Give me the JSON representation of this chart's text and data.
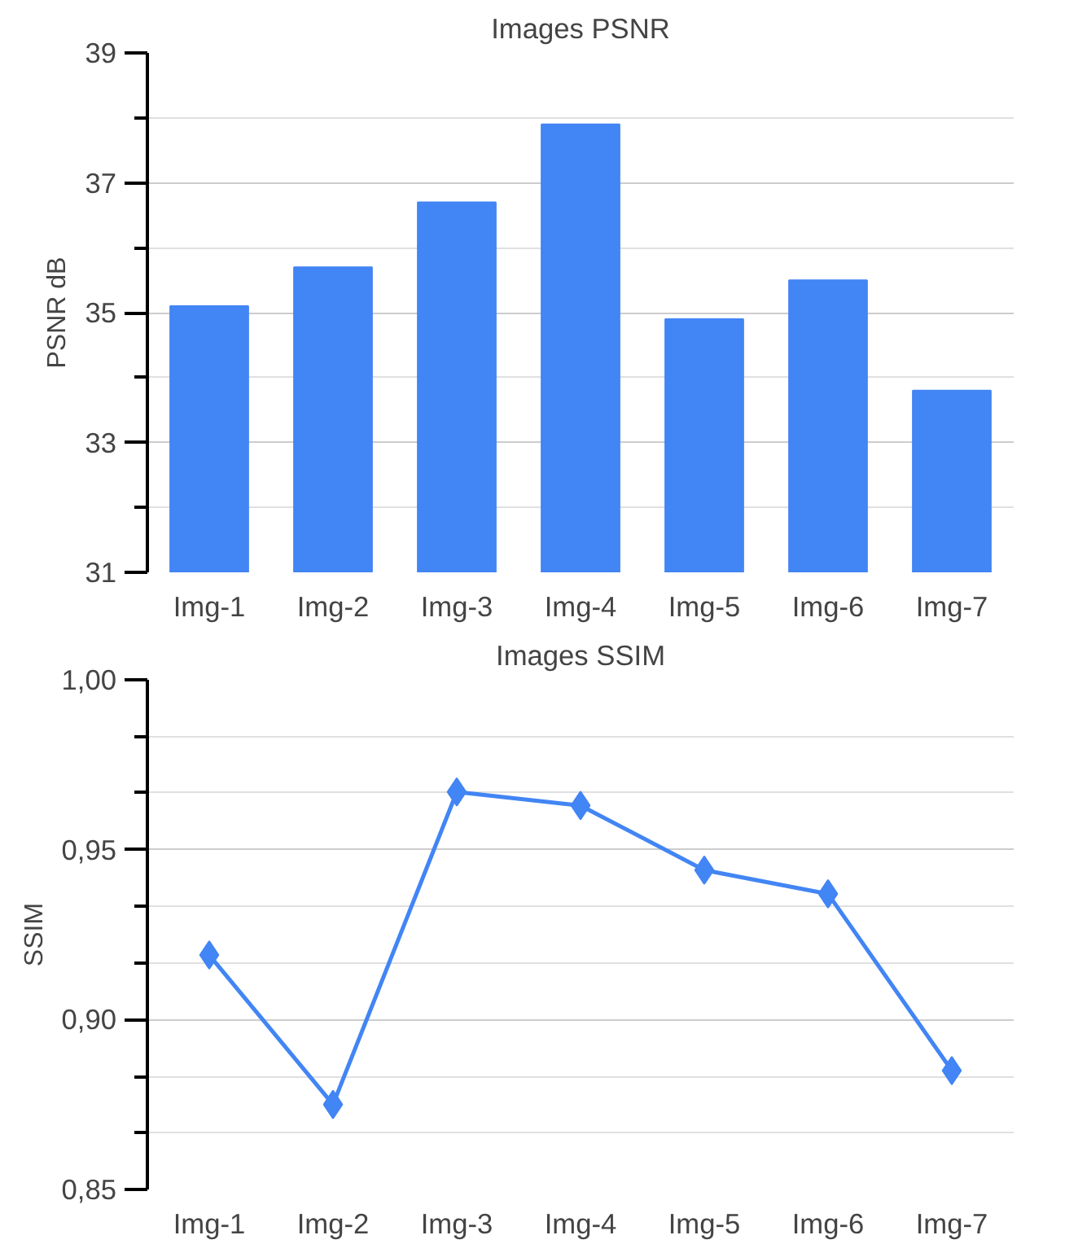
{
  "chart_data": [
    {
      "type": "bar",
      "title": "Images PSNR",
      "ylabel": "PSNR dB",
      "categories": [
        "Img-1",
        "Img-2",
        "Img-3",
        "Img-4",
        "Img-5",
        "Img-6",
        "Img-7"
      ],
      "values": [
        35.1,
        35.7,
        36.7,
        37.9,
        34.9,
        35.5,
        33.8
      ],
      "color": "#4285f4",
      "ylim": [
        31,
        39
      ],
      "yticks": [
        31,
        {
          "value": 32,
          "label": null
        },
        33,
        {
          "value": 34,
          "label": null
        },
        35,
        {
          "value": 36,
          "label": null
        },
        37,
        {
          "value": 38,
          "label": null
        },
        39
      ],
      "grid": "y"
    },
    {
      "type": "line",
      "title": "Images SSIM",
      "ylabel": "SSIM",
      "categories": [
        "Img-1",
        "Img-2",
        "Img-3",
        "Img-4",
        "Img-5",
        "Img-6",
        "Img-7"
      ],
      "values": [
        0.919,
        0.875,
        0.967,
        0.963,
        0.944,
        0.937,
        0.885
      ],
      "color": "#4285f4",
      "marker": "diamond",
      "line_style": "solid",
      "ylim": [
        0.85,
        1.0
      ],
      "yticks": [
        {
          "value": 0.85,
          "label": "0,85"
        },
        {
          "value": 0.8667,
          "label": null
        },
        {
          "value": 0.8833,
          "label": null
        },
        {
          "value": 0.9,
          "label": "0,90"
        },
        {
          "value": 0.9167,
          "label": null
        },
        {
          "value": 0.9333,
          "label": null
        },
        {
          "value": 0.95,
          "label": "0,95"
        },
        {
          "value": 0.9667,
          "label": null
        },
        {
          "value": 0.9833,
          "label": null
        },
        {
          "value": 1.0,
          "label": "1,00"
        }
      ],
      "grid": "y"
    }
  ]
}
